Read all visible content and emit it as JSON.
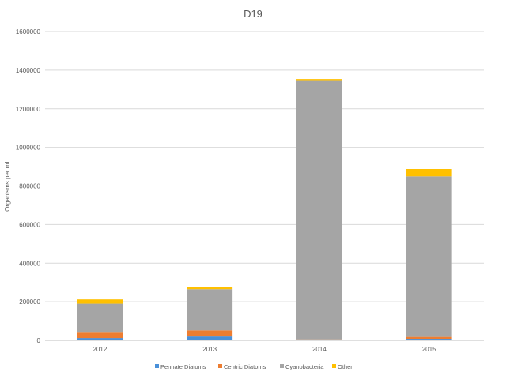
{
  "chart_data": {
    "type": "bar",
    "stacked": true,
    "title": "D19",
    "xlabel": "",
    "ylabel": "Organisms per mL",
    "ylim": [
      0,
      1600000
    ],
    "yticks": [
      "0",
      "200000",
      "400000",
      "600000",
      "800000",
      "1000000",
      "1200000",
      "1400000",
      "1600000"
    ],
    "ytick_values": [
      0,
      200000,
      400000,
      600000,
      800000,
      1000000,
      1200000,
      1400000,
      1600000
    ],
    "grid": true,
    "legend_position": "bottom",
    "categories": [
      "2012",
      "2013",
      "2014",
      "2015"
    ],
    "series": [
      {
        "name": "Pennate Diatoms",
        "color": "#4a90d9",
        "values": [
          12000,
          20000,
          2000,
          8000
        ]
      },
      {
        "name": "Centric Diatoms",
        "color": "#ed7d31",
        "values": [
          28000,
          32000,
          3000,
          10000
        ]
      },
      {
        "name": "Cyanobacteria",
        "color": "#a5a5a5",
        "values": [
          150000,
          213000,
          1343000,
          832000
        ]
      },
      {
        "name": "Other",
        "color": "#ffc000",
        "values": [
          22000,
          10000,
          6000,
          38000
        ]
      }
    ]
  }
}
